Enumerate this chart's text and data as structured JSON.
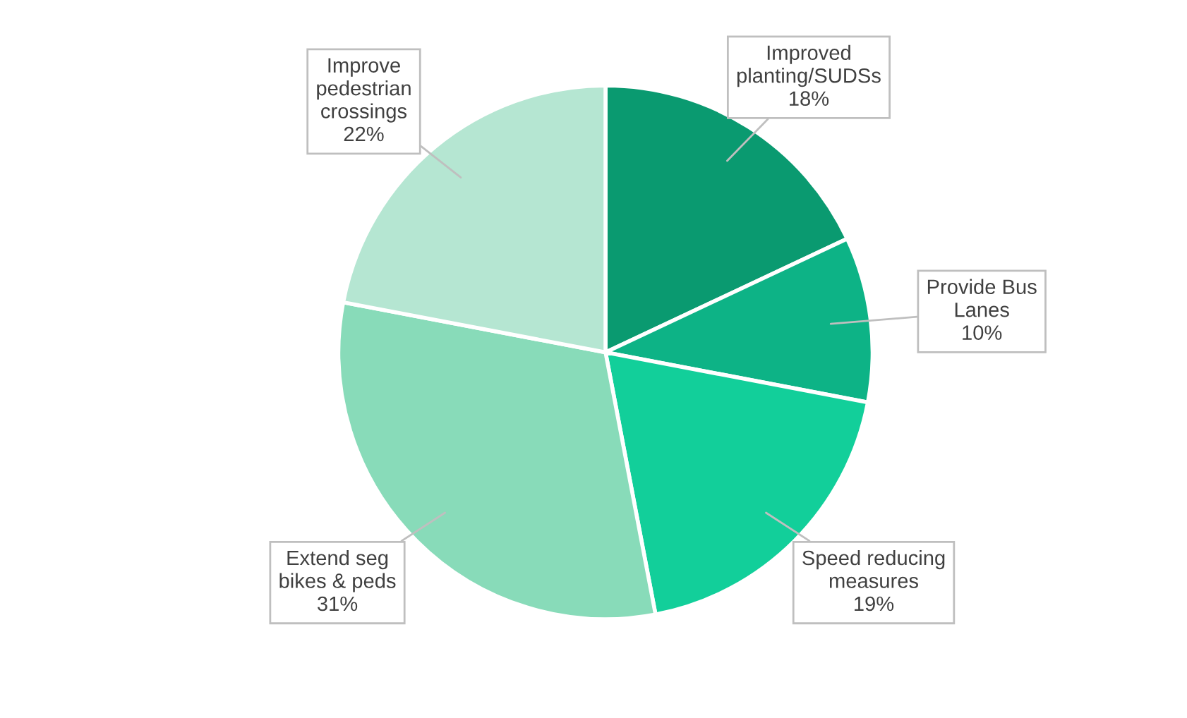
{
  "chart_data": {
    "type": "pie",
    "categories": [
      "Improved\nplanting/SUDSs",
      "Provide Bus\nLanes",
      "Speed reducing\nmeasures",
      "Extend seg\nbikes & peds",
      "Improve\npedestrian\ncrossings"
    ],
    "values": [
      18,
      10,
      19,
      31,
      22
    ],
    "colors": [
      "#0a9a70",
      "#0db386",
      "#12cf9a",
      "#88dbb9",
      "#b5e6d2"
    ],
    "value_labels": [
      "18%",
      "10%",
      "19%",
      "31%",
      "22%"
    ],
    "legend": false
  }
}
